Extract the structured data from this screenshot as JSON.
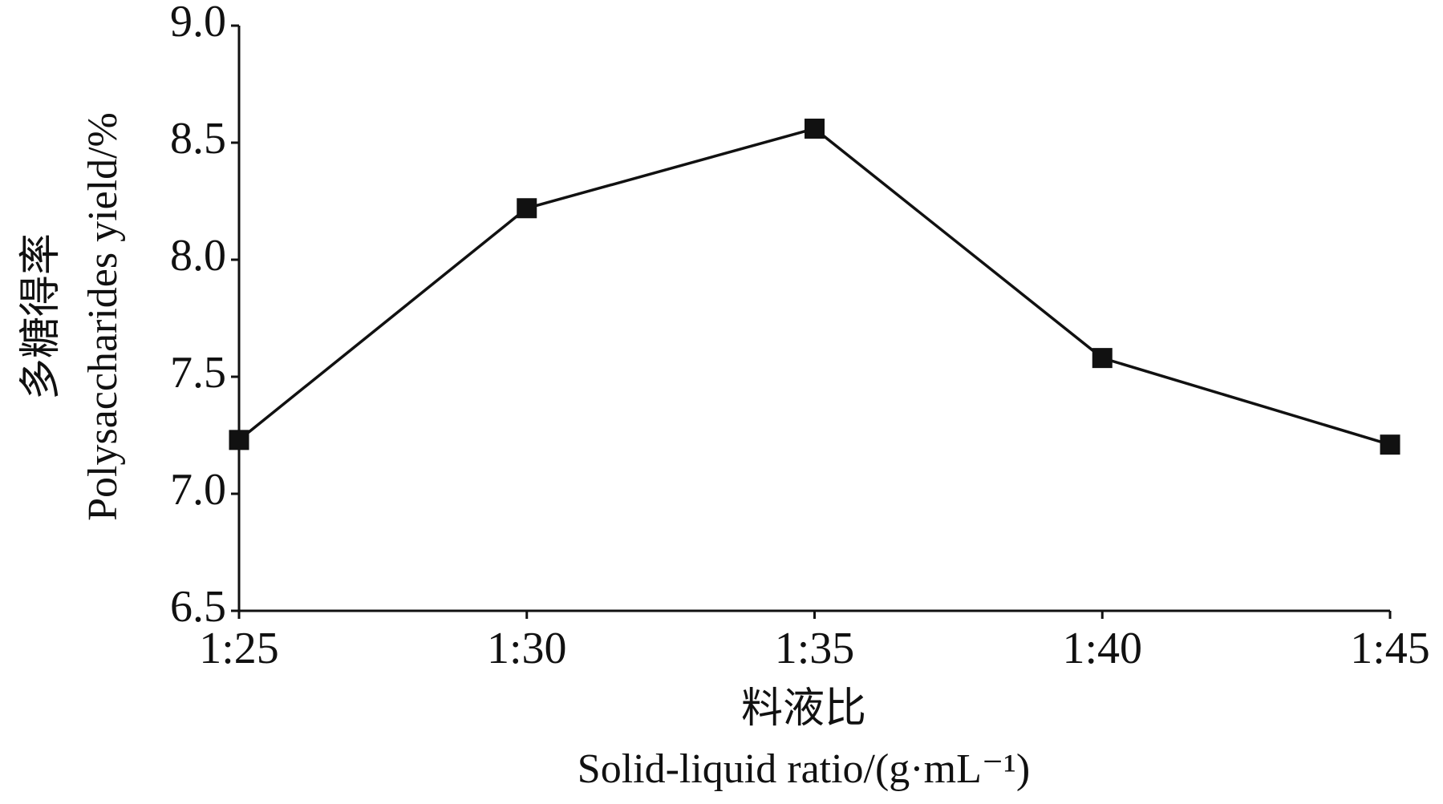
{
  "chart_data": {
    "type": "line",
    "y_label": [
      "多糖得率",
      "Polysaccharides yield/%"
    ],
    "x_label": [
      "料液比",
      "Solid-liquid ratio/(g·mL⁻¹)"
    ],
    "categories": [
      "1:25",
      "1:30",
      "1:35",
      "1:40",
      "1:45"
    ],
    "series": [
      {
        "color": "#111111",
        "values": [
          7.23,
          8.22,
          8.56,
          7.58,
          7.21
        ]
      }
    ],
    "ylim": [
      6.5,
      9.0
    ],
    "yticks": [
      6.5,
      {
        "value": 7,
        "label": "7.0"
      },
      7.5,
      {
        "value": 8,
        "label": "8.0"
      },
      8.5,
      {
        "value": 9,
        "label": "9.0"
      }
    ]
  }
}
